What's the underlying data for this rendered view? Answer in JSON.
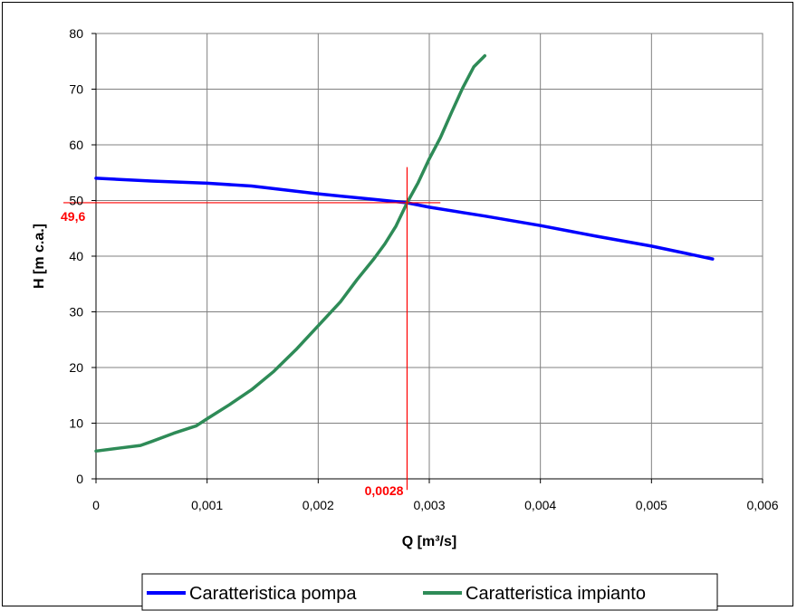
{
  "chart_data": {
    "type": "line",
    "xlabel": "Q [m³/s]",
    "ylabel": "H [m c.a.]",
    "xlim": [
      0,
      0.006
    ],
    "ylim": [
      0,
      80
    ],
    "x_ticks": [
      0,
      0.001,
      0.002,
      0.003,
      0.004,
      0.005,
      0.006
    ],
    "x_tick_labels": [
      "0",
      "0,001",
      "0,002",
      "0,003",
      "0,004",
      "0,005",
      "0,006"
    ],
    "y_ticks": [
      0,
      10,
      20,
      30,
      40,
      50,
      60,
      70,
      80
    ],
    "y_tick_labels": [
      "0",
      "10",
      "20",
      "30",
      "40",
      "50",
      "60",
      "70",
      "80"
    ],
    "grid": true,
    "legend_position": "bottom",
    "series": [
      {
        "name": "Caratteristica pompa",
        "color": "#0000ff",
        "points": [
          [
            0,
            54
          ],
          [
            0.0005,
            53.5
          ],
          [
            0.001,
            53.1
          ],
          [
            0.0014,
            52.6
          ],
          [
            0.002,
            51.2
          ],
          [
            0.0025,
            50.2
          ],
          [
            0.0028,
            49.6
          ],
          [
            0.003,
            48.8
          ],
          [
            0.0035,
            47.2
          ],
          [
            0.004,
            45.5
          ],
          [
            0.0045,
            43.6
          ],
          [
            0.005,
            41.8
          ],
          [
            0.00555,
            39.5
          ]
        ]
      },
      {
        "name": "Caratteristica impianto",
        "color": "#2e8b57",
        "points": [
          [
            0,
            5
          ],
          [
            0.0002,
            5.5
          ],
          [
            0.0004,
            6
          ],
          [
            0.0005,
            6.7
          ],
          [
            0.0007,
            8.2
          ],
          [
            0.0009,
            9.5
          ],
          [
            0.001,
            10.8
          ],
          [
            0.0012,
            13.3
          ],
          [
            0.0014,
            16
          ],
          [
            0.0016,
            19.3
          ],
          [
            0.0018,
            23.2
          ],
          [
            0.002,
            27.5
          ],
          [
            0.0022,
            31.8
          ],
          [
            0.00235,
            35.8
          ],
          [
            0.0025,
            39.5
          ],
          [
            0.0026,
            42.2
          ],
          [
            0.0027,
            45.4
          ],
          [
            0.0028,
            49.6
          ],
          [
            0.0029,
            53.2
          ],
          [
            0.003,
            57.5
          ],
          [
            0.0031,
            61.3
          ],
          [
            0.0032,
            65.8
          ],
          [
            0.0033,
            70.2
          ],
          [
            0.0034,
            74
          ],
          [
            0.0035,
            76
          ]
        ]
      }
    ],
    "annotations": [
      {
        "type": "vline",
        "x": 0.0028,
        "y_range": [
          -2,
          56
        ],
        "label": "0,0028",
        "color": "#ff0000"
      },
      {
        "type": "hline",
        "y": 49.6,
        "x_range": [
          -0.0002,
          0.0031
        ],
        "label": "49,6",
        "color": "#ff0000"
      }
    ]
  }
}
